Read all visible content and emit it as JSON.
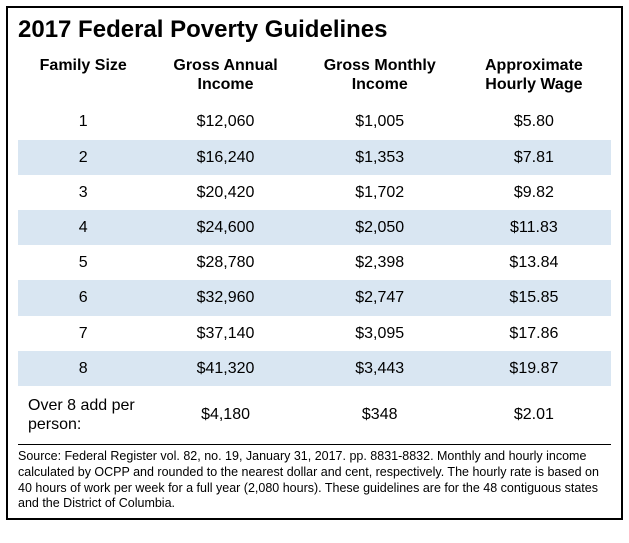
{
  "title": "2017 Federal Poverty Guidelines",
  "columns": {
    "family_size": "Family Size",
    "gross_annual": "Gross Annual Income",
    "gross_monthly": "Gross Monthly Income",
    "hourly": "Approximate Hourly Wage"
  },
  "rows": [
    {
      "size": "1",
      "annual": "$12,060",
      "monthly": "$1,005",
      "hourly": "$5.80"
    },
    {
      "size": "2",
      "annual": "$16,240",
      "monthly": "$1,353",
      "hourly": "$7.81"
    },
    {
      "size": "3",
      "annual": "$20,420",
      "monthly": "$1,702",
      "hourly": "$9.82"
    },
    {
      "size": "4",
      "annual": "$24,600",
      "monthly": "$2,050",
      "hourly": "$11.83"
    },
    {
      "size": "5",
      "annual": "$28,780",
      "monthly": "$2,398",
      "hourly": "$13.84"
    },
    {
      "size": "6",
      "annual": "$32,960",
      "monthly": "$2,747",
      "hourly": "$15.85"
    },
    {
      "size": "7",
      "annual": "$37,140",
      "monthly": "$3,095",
      "hourly": "$17.86"
    },
    {
      "size": "8",
      "annual": "$41,320",
      "monthly": "$3,443",
      "hourly": "$19.87"
    }
  ],
  "over8": {
    "label": "Over 8 add per person:",
    "annual": "$4,180",
    "monthly": "$348",
    "hourly": "$2.01"
  },
  "source": "Source: Federal Register vol. 82, no. 19, January 31, 2017. pp. 8831-8832. Monthly and hourly income calculated by OCPP and rounded to the nearest dollar and cent, respectively. The hourly rate is based on 40 hours of work per week for a full year (2,080 hours). These guidelines are for the 48 contiguous states and the District of Columbia.",
  "style": {
    "stripe_color": "#d9e6f2",
    "border_color": "#000000",
    "background": "#ffffff",
    "title_fontsize": 24,
    "header_fontsize": 16,
    "cell_fontsize": 16,
    "source_fontsize": 12.5
  }
}
